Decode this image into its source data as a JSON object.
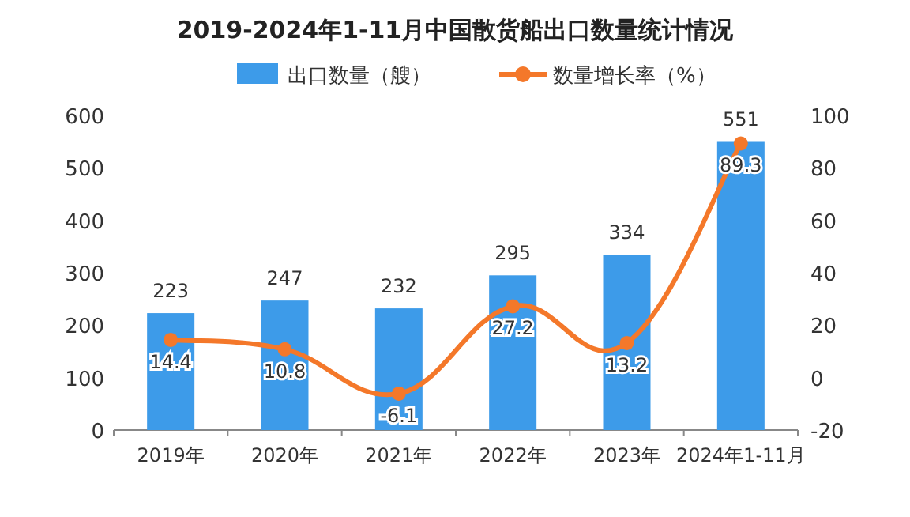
{
  "chart_data": {
    "type": "bar",
    "title": "2019-2024年1-11月中国散货船出口数量统计情况",
    "categories": [
      "2019年",
      "2020年",
      "2021年",
      "2022年",
      "2023年",
      "2024年1-11月"
    ],
    "series": [
      {
        "name": "出口数量（艘）",
        "color": "#3d9be9",
        "values": [
          223,
          247,
          232,
          295,
          334,
          551
        ]
      },
      {
        "name": "数量增长率（%）",
        "type": "line",
        "axis": "y2",
        "color": "#f4782a",
        "marker": "circle",
        "values": [
          14.4,
          10.8,
          -6.1,
          27.2,
          13.2,
          89.3
        ]
      }
    ],
    "ylim": [
      0,
      600
    ],
    "yticks": [
      0,
      100,
      200,
      300,
      400,
      500,
      600
    ],
    "y2lim": [
      -20,
      100
    ],
    "y2ticks": [
      -20,
      0,
      20,
      40,
      60,
      80,
      100
    ],
    "data_labels": true,
    "legend": "top",
    "grid": false
  }
}
